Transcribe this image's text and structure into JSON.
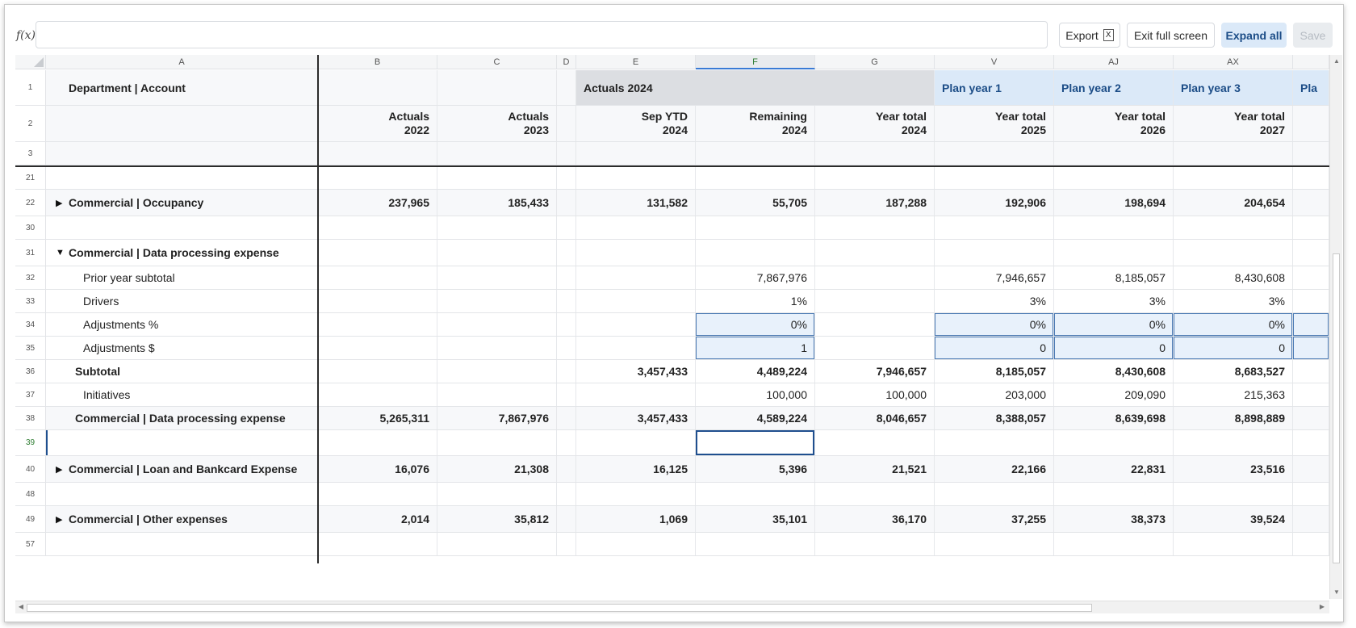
{
  "toolbar": {
    "fx_label": "f(x)",
    "formula_value": "",
    "export_label": "Export",
    "excel_icon": "X",
    "exit_fullscreen_label": "Exit full screen",
    "expand_all_label": "Expand all",
    "save_label": "Save"
  },
  "columns": [
    "A",
    "B",
    "C",
    "D",
    "E",
    "F",
    "G",
    "V",
    "AJ",
    "AX"
  ],
  "header_rows": {
    "row1": {
      "num": "1",
      "a": "Department | Account",
      "actuals_group": "Actuals 2024",
      "plan1": "Plan year 1",
      "plan2": "Plan year 2",
      "plan3": "Plan year 3",
      "plan_partial": "Pla"
    },
    "row2": {
      "num": "2",
      "b": [
        "Actuals",
        "2022"
      ],
      "c": [
        "Actuals",
        "2023"
      ],
      "e": [
        "Sep YTD",
        "2024"
      ],
      "f": [
        "Remaining",
        "2024"
      ],
      "g": [
        "Year total",
        "2024"
      ],
      "v": [
        "Year total",
        "2025"
      ],
      "aj": [
        "Year total",
        "2026"
      ],
      "ax": [
        "Year total",
        "2027"
      ]
    },
    "row3": {
      "num": "3"
    }
  },
  "rows": [
    {
      "num": "21",
      "label": "",
      "vals": [
        "",
        "",
        "",
        "",
        "",
        "",
        "",
        "",
        ""
      ]
    },
    {
      "num": "22",
      "label": "Commercial | Occupancy",
      "arrow": "▶",
      "vals": [
        "237,965",
        "185,433",
        "",
        "131,582",
        "55,705",
        "187,288",
        "192,906",
        "198,694",
        "204,654"
      ]
    },
    {
      "num": "30",
      "label": "",
      "vals": [
        "",
        "",
        "",
        "",
        "",
        "",
        "",
        "",
        ""
      ]
    },
    {
      "num": "31",
      "label": "Commercial | Data processing expense",
      "arrow": "▼",
      "vals": [
        "",
        "",
        "",
        "",
        "",
        "",
        "",
        "",
        ""
      ]
    },
    {
      "num": "32",
      "label": "Prior year subtotal",
      "vals": [
        "",
        "",
        "",
        "",
        "7,867,976",
        "",
        "7,946,657",
        "8,185,057",
        "8,430,608"
      ]
    },
    {
      "num": "33",
      "label": "Drivers",
      "vals": [
        "",
        "",
        "",
        "",
        "1%",
        "",
        "3%",
        "3%",
        "3%"
      ]
    },
    {
      "num": "34",
      "label": "Adjustments %",
      "vals": [
        "",
        "",
        "",
        "",
        "0%",
        "",
        "0%",
        "0%",
        "0%"
      ]
    },
    {
      "num": "35",
      "label": "Adjustments $",
      "vals": [
        "",
        "",
        "",
        "",
        "1",
        "",
        "0",
        "0",
        "0"
      ]
    },
    {
      "num": "36",
      "label": "Subtotal",
      "vals": [
        "",
        "",
        "",
        "3,457,433",
        "4,489,224",
        "7,946,657",
        "8,185,057",
        "8,430,608",
        "8,683,527"
      ]
    },
    {
      "num": "37",
      "label": "Initiatives",
      "vals": [
        "",
        "",
        "",
        "",
        "100,000",
        "100,000",
        "203,000",
        "209,090",
        "215,363"
      ]
    },
    {
      "num": "38",
      "label": "Commercial | Data processing expense",
      "vals": [
        "5,265,311",
        "7,867,976",
        "",
        "3,457,433",
        "4,589,224",
        "8,046,657",
        "8,388,057",
        "8,639,698",
        "8,898,889"
      ]
    },
    {
      "num": "39",
      "label": "",
      "vals": [
        "",
        "",
        "",
        "",
        "",
        "",
        "",
        "",
        ""
      ]
    },
    {
      "num": "40",
      "label": "Commercial | Loan and Bankcard Expense",
      "arrow": "▶",
      "vals": [
        "16,076",
        "21,308",
        "",
        "16,125",
        "5,396",
        "21,521",
        "22,166",
        "22,831",
        "23,516"
      ]
    },
    {
      "num": "48",
      "label": "",
      "vals": [
        "",
        "",
        "",
        "",
        "",
        "",
        "",
        "",
        ""
      ]
    },
    {
      "num": "49",
      "label": "Commercial | Other expenses",
      "arrow": "▶",
      "vals": [
        "2,014",
        "35,812",
        "",
        "1,069",
        "35,101",
        "36,170",
        "37,255",
        "38,373",
        "39,524"
      ]
    },
    {
      "num": "57",
      "label": "",
      "vals": [
        "",
        "",
        "",
        "",
        "",
        "",
        "",
        "",
        ""
      ]
    }
  ]
}
